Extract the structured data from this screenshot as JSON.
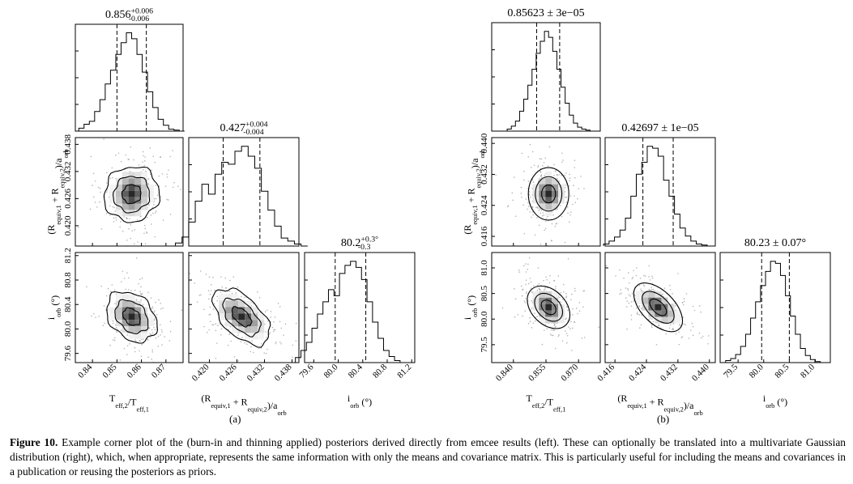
{
  "panels": [
    {
      "sublabel": "(a)",
      "chart_data": {
        "type": "corner",
        "parameters": [
          {
            "axis_label": "T_{eff,2}/T_{eff,1}",
            "title": "0.856^{+0.006}_{-0.006}",
            "median": 0.856,
            "q16": 0.85,
            "q84": 0.862,
            "range": [
              0.833,
              0.877
            ],
            "ticks": [
              0.84,
              0.85,
              0.86,
              0.87
            ],
            "tick_labels": [
              "0.84",
              "0.85",
              "0.86",
              "0.87"
            ]
          },
          {
            "axis_label": "(R_{equiv,1} + R_{equiv,2})/a_{orb}",
            "title": "0.427^{+0.004}_{-0.004}",
            "median": 0.427,
            "q16": 0.423,
            "q84": 0.431,
            "range": [
              0.4155,
              0.4395
            ],
            "ticks": [
              0.42,
              0.426,
              0.432,
              0.438
            ],
            "tick_labels": [
              "0.420",
              "0.426",
              "0.432",
              "0.438"
            ]
          },
          {
            "axis_label": "i_{orb} (°)",
            "title": "80.2^{+0.3°}_{-0.3}",
            "median": 80.2,
            "q16": 79.95,
            "q84": 80.45,
            "range": [
              79.45,
              81.25
            ],
            "ticks": [
              79.6,
              80.0,
              80.4,
              80.8,
              81.2
            ],
            "tick_labels": [
              "79.6",
              "80.0",
              "80.4",
              "80.8",
              "81.2"
            ]
          }
        ],
        "histograms": [
          [
            0.03,
            0.07,
            0.1,
            0.2,
            0.32,
            0.48,
            0.62,
            0.78,
            0.9,
            1.0,
            0.94,
            0.78,
            0.6,
            0.4,
            0.24,
            0.12,
            0.06,
            0.02,
            0.01,
            0
          ],
          [
            0.03,
            0.09,
            0.24,
            0.45,
            0.62,
            0.52,
            0.72,
            0.84,
            0.82,
            0.95,
            1.0,
            0.9,
            0.78,
            0.55,
            0.36,
            0.2,
            0.08,
            0.05,
            0.02,
            0
          ],
          [
            0.05,
            0.12,
            0.2,
            0.34,
            0.48,
            0.6,
            0.72,
            0.66,
            0.88,
            0.96,
            1.0,
            0.94,
            0.82,
            0.6,
            0.4,
            0.24,
            0.12,
            0.06,
            0.02,
            0
          ]
        ],
        "correlation": {
          "p2_p1": 0.05,
          "p3_p1": -0.3,
          "p3_p2": -0.55
        }
      }
    },
    {
      "sublabel": "(b)",
      "chart_data": {
        "type": "corner",
        "parameters": [
          {
            "axis_label": "T_{eff,2}/T_{eff,1}",
            "title": "0.85623 ± 3e−05",
            "median": 0.8562,
            "q16": 0.8507,
            "q84": 0.8613,
            "range": [
              0.83,
              0.88
            ],
            "ticks": [
              0.84,
              0.855,
              0.87
            ],
            "tick_labels": [
              "0.840",
              "0.855",
              "0.870"
            ]
          },
          {
            "axis_label": "(R_{equiv,1} + R_{equiv,2})/a_{orb}",
            "title": "0.42697 ± 1e−05",
            "median": 0.42697,
            "q16": 0.4231,
            "q84": 0.4308,
            "range": [
              0.4135,
              0.4415
            ],
            "ticks": [
              0.416,
              0.424,
              0.432,
              0.44
            ],
            "tick_labels": [
              "0.416",
              "0.424",
              "0.432",
              "0.440"
            ]
          },
          {
            "axis_label": "i_{orb} (°)",
            "title": "80.23 ± 0.07°",
            "median": 80.23,
            "q16": 79.96,
            "q84": 80.5,
            "range": [
              79.15,
              81.3
            ],
            "ticks": [
              79.5,
              80.0,
              80.5,
              81.0
            ],
            "tick_labels": [
              "79.5",
              "80.0",
              "80.5",
              "81.0"
            ]
          }
        ],
        "histograms": [
          [
            0.02,
            0.05,
            0.1,
            0.2,
            0.32,
            0.46,
            0.62,
            0.78,
            0.9,
            1.0,
            0.94,
            0.8,
            0.62,
            0.44,
            0.28,
            0.16,
            0.08,
            0.04,
            0.02,
            0.01
          ],
          [
            0.02,
            0.05,
            0.09,
            0.16,
            0.28,
            0.5,
            0.72,
            0.84,
            1.0,
            0.98,
            0.9,
            0.66,
            0.5,
            0.32,
            0.18,
            0.1,
            0.05,
            0.02,
            0.01,
            0
          ],
          [
            0.02,
            0.04,
            0.08,
            0.16,
            0.28,
            0.44,
            0.6,
            0.76,
            0.9,
            1.0,
            0.98,
            0.86,
            0.66,
            0.46,
            0.28,
            0.14,
            0.07,
            0.03,
            0.01,
            0
          ]
        ],
        "correlation": {
          "p2_p1": 0.0,
          "p3_p1": -0.35,
          "p3_p2": -0.55
        }
      }
    }
  ],
  "caption": {
    "label": "Figure 10.",
    "text": " Example corner plot of the (burn-in and thinning applied) posteriors derived directly from emcee results (left). These can optionally be translated into a multivariate Gaussian distribution (right), which, when appropriate, represents the same information with only the means and covariance matrix. This is particularly useful for including the means and covariances in a publication or reusing the posteriors as priors."
  }
}
